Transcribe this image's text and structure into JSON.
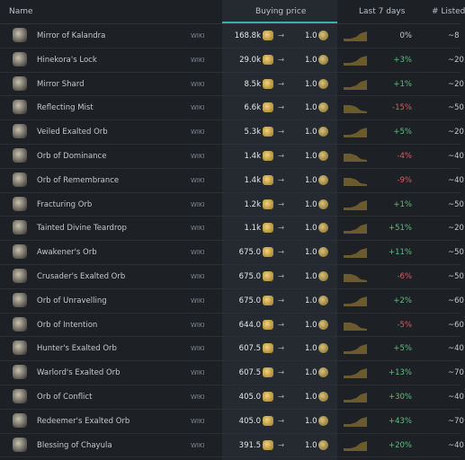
{
  "header": {
    "name": "Name",
    "buying_price": "Buying price",
    "last_7_days": "Last 7 days",
    "listed": "# Listed"
  },
  "rows": [
    {
      "name": "Mirror of Kalandra",
      "wiki": "WIKI",
      "price": "168.8k",
      "receive": "1.0",
      "change": "0%",
      "listed": "~8"
    },
    {
      "name": "Hinekora's Lock",
      "wiki": "WIKI",
      "price": "29.0k",
      "receive": "1.0",
      "change": "+3%",
      "listed": "~20"
    },
    {
      "name": "Mirror Shard",
      "wiki": "WIKI",
      "price": "8.5k",
      "receive": "1.0",
      "change": "+1%",
      "listed": "~20"
    },
    {
      "name": "Reflecting Mist",
      "wiki": "WIKI",
      "price": "6.6k",
      "receive": "1.0",
      "change": "-15%",
      "listed": "~50"
    },
    {
      "name": "Veiled Exalted Orb",
      "wiki": "WIKI",
      "price": "5.3k",
      "receive": "1.0",
      "change": "+5%",
      "listed": "~20"
    },
    {
      "name": "Orb of Dominance",
      "wiki": "WIKI",
      "price": "1.4k",
      "receive": "1.0",
      "change": "-4%",
      "listed": "~40"
    },
    {
      "name": "Orb of Remembrance",
      "wiki": "WIKI",
      "price": "1.4k",
      "receive": "1.0",
      "change": "-9%",
      "listed": "~40"
    },
    {
      "name": "Fracturing Orb",
      "wiki": "WIKI",
      "price": "1.2k",
      "receive": "1.0",
      "change": "+1%",
      "listed": "~50"
    },
    {
      "name": "Tainted Divine Teardrop",
      "wiki": "WIKI",
      "price": "1.1k",
      "receive": "1.0",
      "change": "+51%",
      "listed": "~20"
    },
    {
      "name": "Awakener's Orb",
      "wiki": "WIKI",
      "price": "675.0",
      "receive": "1.0",
      "change": "+11%",
      "listed": "~50"
    },
    {
      "name": "Crusader's Exalted Orb",
      "wiki": "WIKI",
      "price": "675.0",
      "receive": "1.0",
      "change": "-6%",
      "listed": "~50"
    },
    {
      "name": "Orb of Unravelling",
      "wiki": "WIKI",
      "price": "675.0",
      "receive": "1.0",
      "change": "+2%",
      "listed": "~60"
    },
    {
      "name": "Orb of Intention",
      "wiki": "WIKI",
      "price": "644.0",
      "receive": "1.0",
      "change": "-5%",
      "listed": "~60"
    },
    {
      "name": "Hunter's Exalted Orb",
      "wiki": "WIKI",
      "price": "607.5",
      "receive": "1.0",
      "change": "+5%",
      "listed": "~40"
    },
    {
      "name": "Warlord's Exalted Orb",
      "wiki": "WIKI",
      "price": "607.5",
      "receive": "1.0",
      "change": "+13%",
      "listed": "~70"
    },
    {
      "name": "Orb of Conflict",
      "wiki": "WIKI",
      "price": "405.0",
      "receive": "1.0",
      "change": "+30%",
      "listed": "~40"
    },
    {
      "name": "Redeemer's Exalted Orb",
      "wiki": "WIKI",
      "price": "405.0",
      "receive": "1.0",
      "change": "+43%",
      "listed": "~70"
    },
    {
      "name": "Blessing of Chayula",
      "wiki": "WIKI",
      "price": "391.5",
      "receive": "1.0",
      "change": "+20%",
      "listed": "~40"
    }
  ]
}
